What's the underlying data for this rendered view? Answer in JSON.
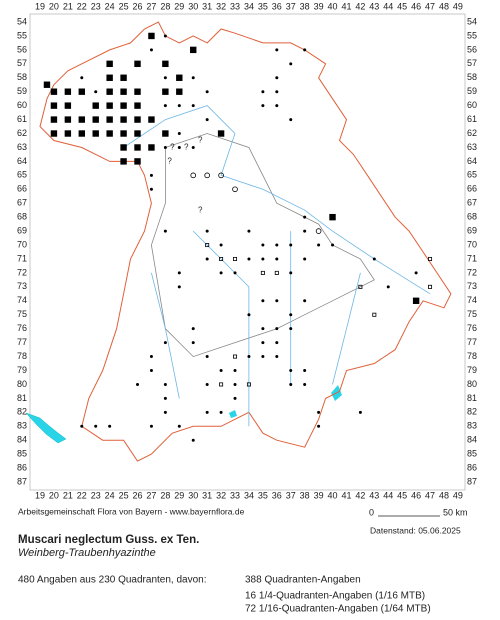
{
  "grid": {
    "columns": [
      19,
      20,
      21,
      22,
      23,
      24,
      25,
      26,
      27,
      28,
      29,
      30,
      31,
      32,
      33,
      34,
      35,
      36,
      37,
      38,
      39,
      40,
      41,
      42,
      43,
      44,
      45,
      46,
      47,
      48,
      49
    ],
    "rows": [
      54,
      55,
      56,
      57,
      58,
      59,
      60,
      61,
      62,
      63,
      64,
      65,
      66,
      67,
      68,
      69,
      70,
      71,
      72,
      73,
      74,
      75,
      76,
      77,
      78,
      79,
      80,
      81,
      82,
      83,
      84,
      85,
      86,
      87
    ]
  },
  "map_marks": [
    "?",
    "?",
    "?",
    "?",
    "?"
  ],
  "credit": "Arbeitsgemeinschaft Flora von Bayern - www.bayernflora.de",
  "scale": {
    "start": "0",
    "end": "50 km"
  },
  "data_date": "Datenstand: 05.06.2025",
  "title": "Muscari neglectum Guss. ex Ten.",
  "subtitle": "Weinberg-Traubenhyazinthe",
  "summary": "480 Angaben aus 230 Quadranten, davon:",
  "breakdown": [
    "388 Quadranten-Angaben",
    "16 1/4-Quadranten-Angaben (1/16 MTB)",
    "72 1/16-Quadranten-Angaben (1/64 MTB)"
  ]
}
